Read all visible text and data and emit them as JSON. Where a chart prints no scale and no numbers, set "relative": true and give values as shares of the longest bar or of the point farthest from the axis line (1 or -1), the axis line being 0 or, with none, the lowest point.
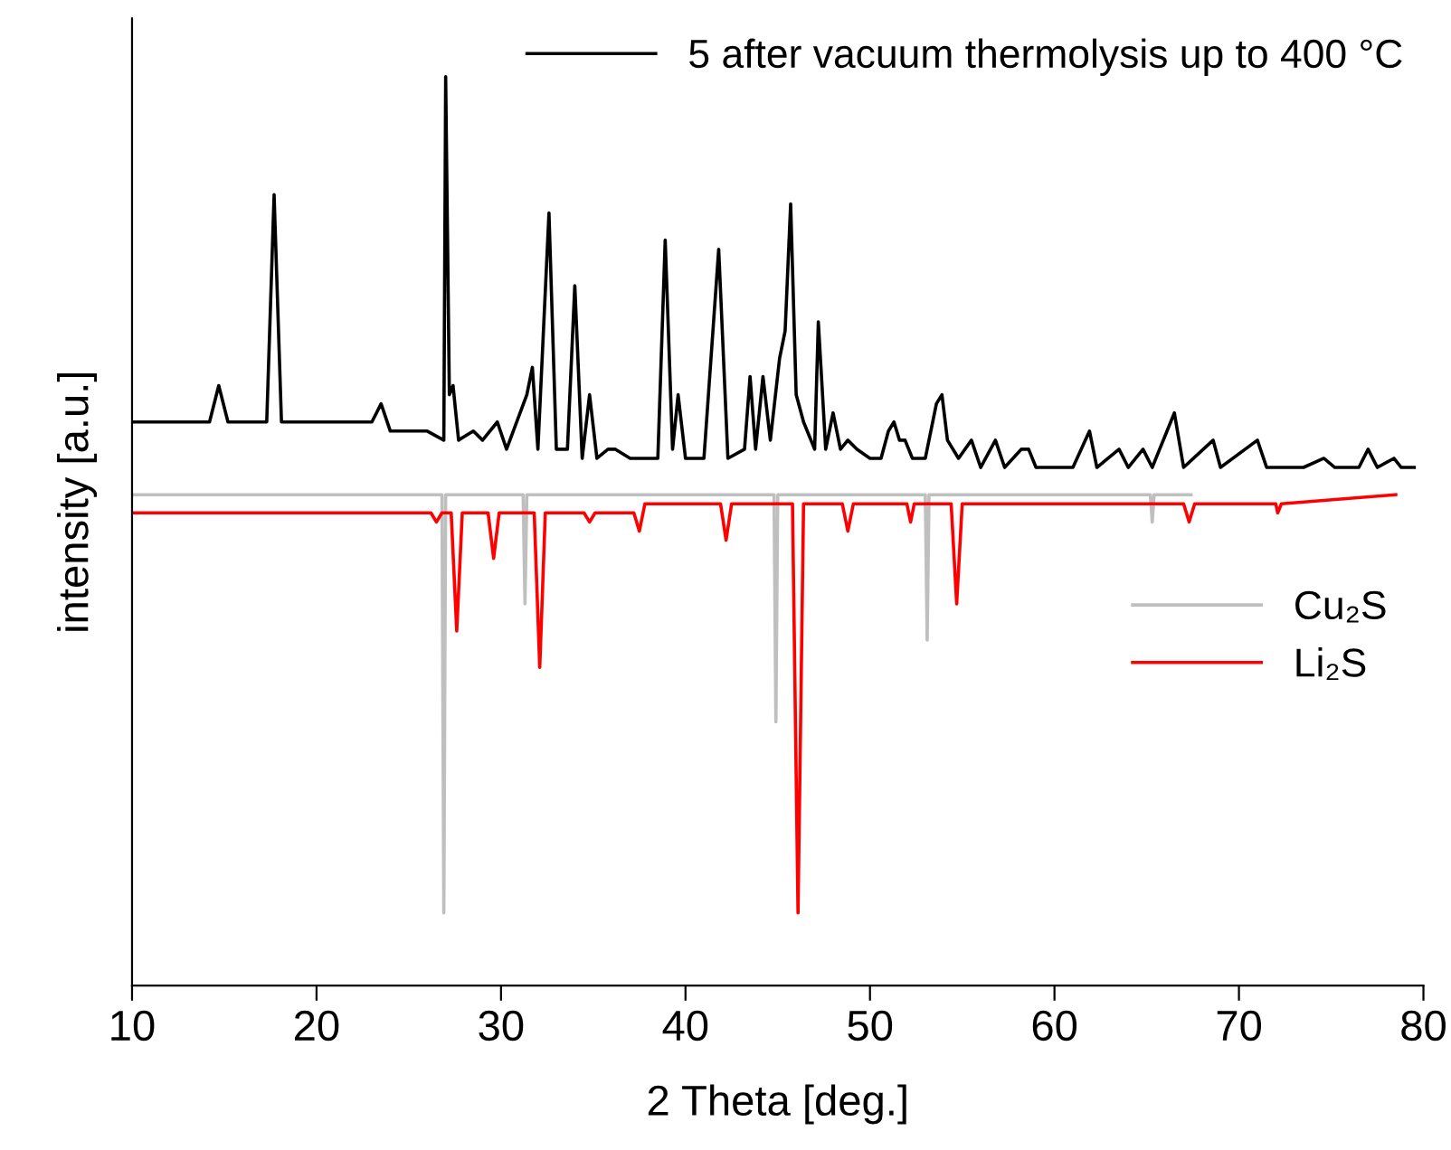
{
  "chart_data": {
    "type": "line",
    "relative": true,
    "xlabel": "2 Theta [deg.]",
    "ylabel": "intensity [a.u.]",
    "xlim": [
      10,
      80
    ],
    "xticks": [
      10,
      20,
      30,
      40,
      50,
      60,
      70,
      80
    ],
    "tick_labels": "x",
    "legend": "top right",
    "grid": false,
    "series": [
      {
        "name": "5 after vacuum thermolysis up to 400 °C",
        "color": "#000000",
        "x": [
          10,
          14.2,
          14.7,
          15.2,
          17.3,
          17.7,
          18.1,
          20,
          23,
          23.5,
          24,
          26,
          26.9,
          27.0,
          27.2,
          27.4,
          27.7,
          28.5,
          29,
          29.8,
          30.3,
          31.4,
          31.7,
          32.0,
          32.6,
          33.0,
          33.6,
          34.0,
          34.4,
          34.8,
          35.2,
          35.8,
          36.2,
          37,
          38.5,
          38.9,
          39.3,
          39.6,
          40.0,
          41,
          41.8,
          42.3,
          43.2,
          43.5,
          43.8,
          44.2,
          44.6,
          45.1,
          45.4,
          45.7,
          46.0,
          46.4,
          47.0,
          47.2,
          47.6,
          48.0,
          48.4,
          48.8,
          49.3,
          50,
          50.6,
          51,
          51.3,
          51.6,
          51.9,
          52.3,
          53,
          53.6,
          53.9,
          54.2,
          54.8,
          55.5,
          56,
          56.8,
          57.3,
          58.2,
          58.6,
          59,
          61,
          61.9,
          62.3,
          63.5,
          64,
          64.8,
          65.3,
          66.5,
          67,
          68.6,
          69,
          71.0,
          71.5,
          73.5,
          74.6,
          75.2,
          76.5,
          77,
          77.5,
          78.4,
          78.8,
          79.5
        ],
        "values": [
          0.62,
          0.62,
          0.66,
          0.62,
          0.62,
          0.87,
          0.62,
          0.62,
          0.62,
          0.64,
          0.61,
          0.61,
          0.6,
          1.0,
          0.65,
          0.66,
          0.6,
          0.61,
          0.6,
          0.62,
          0.59,
          0.65,
          0.68,
          0.59,
          0.85,
          0.59,
          0.59,
          0.77,
          0.58,
          0.65,
          0.58,
          0.59,
          0.59,
          0.58,
          0.58,
          0.82,
          0.59,
          0.65,
          0.58,
          0.58,
          0.81,
          0.58,
          0.59,
          0.67,
          0.59,
          0.67,
          0.6,
          0.69,
          0.72,
          0.86,
          0.65,
          0.62,
          0.59,
          0.73,
          0.59,
          0.63,
          0.59,
          0.6,
          0.59,
          0.58,
          0.58,
          0.61,
          0.62,
          0.6,
          0.6,
          0.58,
          0.58,
          0.64,
          0.65,
          0.6,
          0.58,
          0.6,
          0.57,
          0.6,
          0.57,
          0.59,
          0.59,
          0.57,
          0.57,
          0.61,
          0.57,
          0.59,
          0.57,
          0.59,
          0.57,
          0.63,
          0.57,
          0.6,
          0.57,
          0.6,
          0.57,
          0.57,
          0.58,
          0.57,
          0.57,
          0.59,
          0.57,
          0.58,
          0.57,
          0.57
        ]
      },
      {
        "name": "Cu₂S",
        "color": "#bfbfbf",
        "x": [
          10,
          26.8,
          26.9,
          27.0,
          31.2,
          31.3,
          31.4,
          44.8,
          44.9,
          45.0,
          53.0,
          53.1,
          53.2,
          65.2,
          65.3,
          65.4,
          67.4
        ],
        "values": [
          0.54,
          0.54,
          0.08,
          0.54,
          0.54,
          0.42,
          0.54,
          0.54,
          0.29,
          0.54,
          0.54,
          0.38,
          0.54,
          0.54,
          0.51,
          0.54,
          0.54
        ]
      },
      {
        "name": "Li₂S",
        "color": "#ff0000",
        "x": [
          10,
          26.2,
          26.5,
          26.8,
          27.3,
          27.6,
          27.9,
          29.3,
          29.6,
          29.9,
          31.8,
          32.1,
          32.4,
          34.5,
          34.8,
          35.1,
          37.2,
          37.5,
          37.8,
          41.9,
          42.2,
          42.5,
          45.8,
          46.1,
          46.4,
          48.5,
          48.8,
          49.1,
          52,
          52.2,
          52.4,
          54.4,
          54.7,
          55,
          67,
          67.3,
          67.6,
          72,
          72.1,
          72.3,
          78.5
        ],
        "values": [
          0.52,
          0.52,
          0.51,
          0.52,
          0.52,
          0.39,
          0.52,
          0.52,
          0.47,
          0.52,
          0.52,
          0.35,
          0.52,
          0.52,
          0.51,
          0.52,
          0.52,
          0.5,
          0.53,
          0.53,
          0.49,
          0.53,
          0.53,
          0.08,
          0.53,
          0.53,
          0.5,
          0.53,
          0.53,
          0.51,
          0.53,
          0.53,
          0.42,
          0.53,
          0.53,
          0.51,
          0.53,
          0.53,
          0.52,
          0.53,
          0.54
        ]
      }
    ]
  }
}
